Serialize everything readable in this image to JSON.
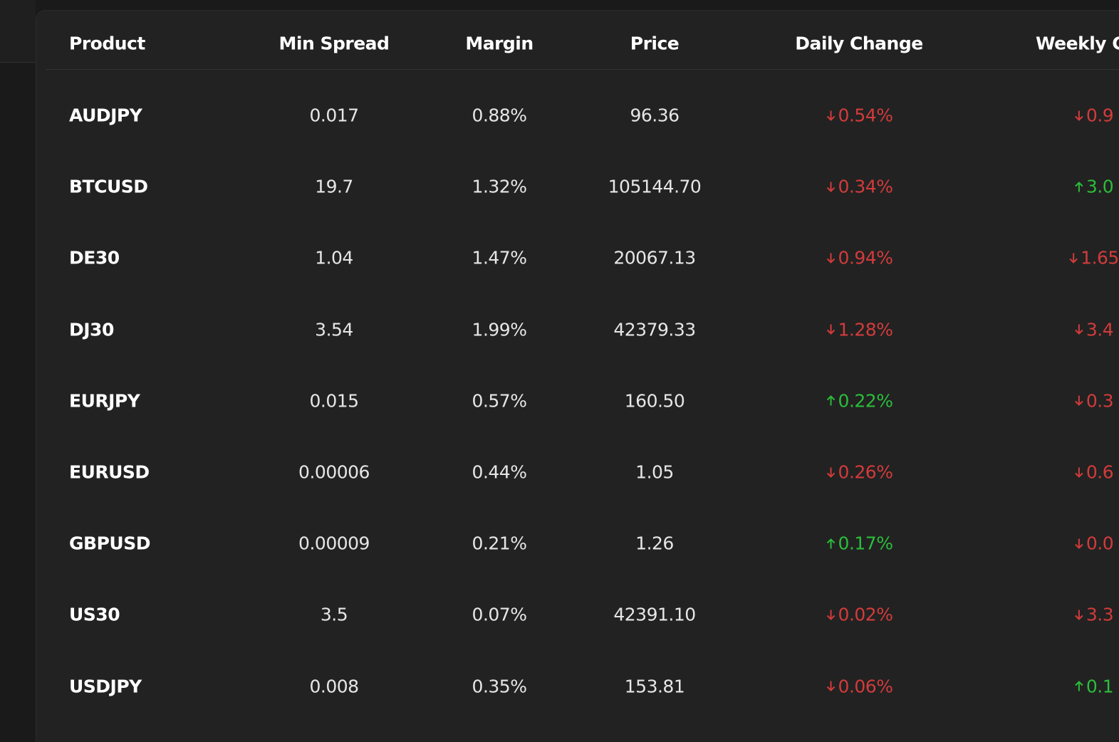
{
  "table": {
    "headers": [
      "Product",
      "Min Spread",
      "Margin",
      "Price",
      "Daily Change",
      "Weekly C"
    ],
    "rows": [
      [
        "AUDJPY",
        "0.017",
        "0.88%",
        "96.36",
        {
          "text": "0.54%",
          "direction": "down"
        },
        {
          "text": "0.9",
          "direction": "down"
        }
      ],
      [
        "BTCUSD",
        "19.7",
        "1.32%",
        "105144.70",
        {
          "text": "0.34%",
          "direction": "down"
        },
        {
          "text": "3.0",
          "direction": "up"
        }
      ],
      [
        "DE30",
        "1.04",
        "1.47%",
        "20067.13",
        {
          "text": "0.94%",
          "direction": "down"
        },
        {
          "text": "1.65",
          "direction": "down"
        }
      ],
      [
        "DJ30",
        "3.54",
        "1.99%",
        "42379.33",
        {
          "text": "1.28%",
          "direction": "down"
        },
        {
          "text": "3.4",
          "direction": "down"
        }
      ],
      [
        "EURJPY",
        "0.015",
        "0.57%",
        "160.50",
        {
          "text": "0.22%",
          "direction": "up"
        },
        {
          "text": "0.3",
          "direction": "down"
        }
      ],
      [
        "EURUSD",
        "0.00006",
        "0.44%",
        "1.05",
        {
          "text": "0.26%",
          "direction": "down"
        },
        {
          "text": "0.6",
          "direction": "down"
        }
      ],
      [
        "GBPUSD",
        "0.00009",
        "0.21%",
        "1.26",
        {
          "text": "0.17%",
          "direction": "up"
        },
        {
          "text": "0.0",
          "direction": "down"
        }
      ],
      [
        "US30",
        "3.5",
        "0.07%",
        "42391.10",
        {
          "text": "0.02%",
          "direction": "down"
        },
        {
          "text": "3.3",
          "direction": "down"
        }
      ],
      [
        "USDJPY",
        "0.008",
        "0.35%",
        "153.81",
        {
          "text": "0.06%",
          "direction": "down"
        },
        {
          "text": "0.1",
          "direction": "up"
        }
      ]
    ]
  }
}
